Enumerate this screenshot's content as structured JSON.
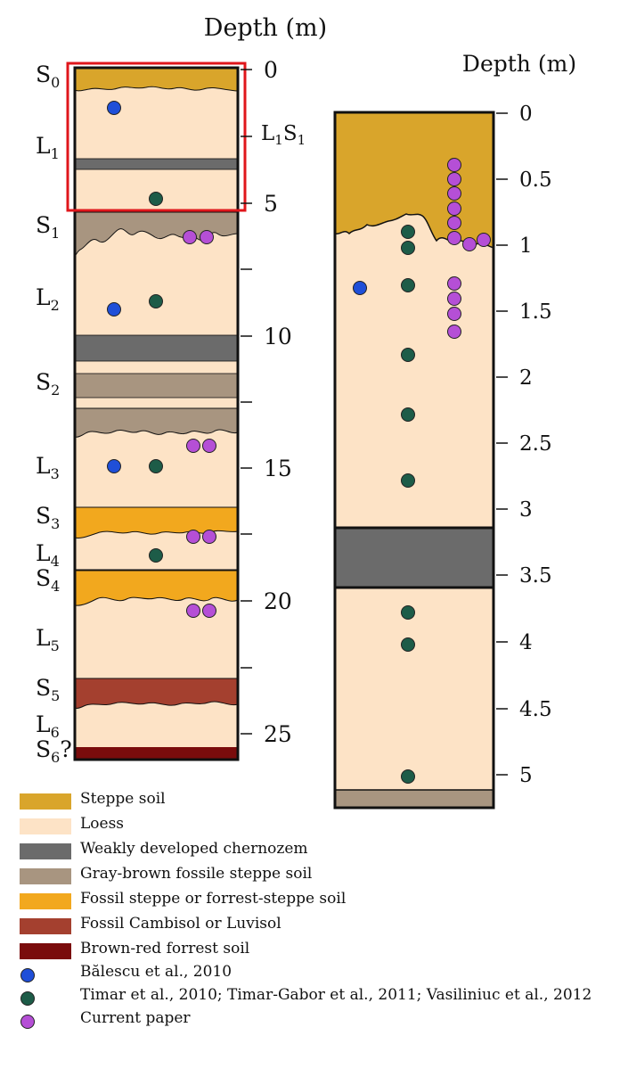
{
  "left_column": {
    "depth_title": "Depth (m)",
    "ticks": [
      "0",
      "5",
      "10",
      "15",
      "20",
      "25"
    ],
    "unit_labels": [
      {
        "base": "S",
        "sub": "0",
        "suffix": ""
      },
      {
        "base": "L",
        "sub": "1",
        "suffix": ""
      },
      {
        "base": "S",
        "sub": "1",
        "suffix": ""
      },
      {
        "base": "L",
        "sub": "2",
        "suffix": ""
      },
      {
        "base": "S",
        "sub": "2",
        "suffix": ""
      },
      {
        "base": "L",
        "sub": "3",
        "suffix": ""
      },
      {
        "base": "S",
        "sub": "3",
        "suffix": ""
      },
      {
        "base": "L",
        "sub": "4",
        "suffix": ""
      },
      {
        "base": "S",
        "sub": "4",
        "suffix": ""
      },
      {
        "base": "L",
        "sub": "5",
        "suffix": ""
      },
      {
        "base": "S",
        "sub": "5",
        "suffix": ""
      },
      {
        "base": "L",
        "sub": "6",
        "suffix": ""
      },
      {
        "base": "S",
        "sub": "6",
        "suffix": "?"
      }
    ],
    "l1s1_label": {
      "a": "L",
      "a_sub": "1",
      "b": "S",
      "b_sub": "1"
    },
    "highlight_color": "#e0161b"
  },
  "right_column": {
    "depth_title": "Depth (m)",
    "ticks": [
      "0",
      "0.5",
      "1",
      "1.5",
      "2",
      "2.5",
      "3",
      "3.5",
      "4",
      "4.5",
      "5"
    ]
  },
  "legend": {
    "swatches": [
      {
        "label": "Steppe soil",
        "color": "#d9a52b"
      },
      {
        "label": "Loess",
        "color": "#fde3c6"
      },
      {
        "label": "Weakly developed chernozem",
        "color": "#6b6b6b"
      },
      {
        "label": "Gray-brown fossile steppe soil",
        "color": "#a89580"
      },
      {
        "label": "Fossil steppe or forrest-steppe soil",
        "color": "#f2a81e"
      },
      {
        "label": "Fossil Cambisol or Luvisol",
        "color": "#a4402f"
      },
      {
        "label": "Brown-red forrest soil",
        "color": "#7a0c0c"
      }
    ],
    "markers": [
      {
        "label": "Bălescu et al., 2010",
        "color": "#1f4fd8"
      },
      {
        "label": "Timar et al., 2010; Timar-Gabor et al., 2011; Vasiliniuc et al., 2012",
        "color": "#1d5c48"
      },
      {
        "label": "Current paper",
        "color": "#b54fd6"
      }
    ]
  }
}
